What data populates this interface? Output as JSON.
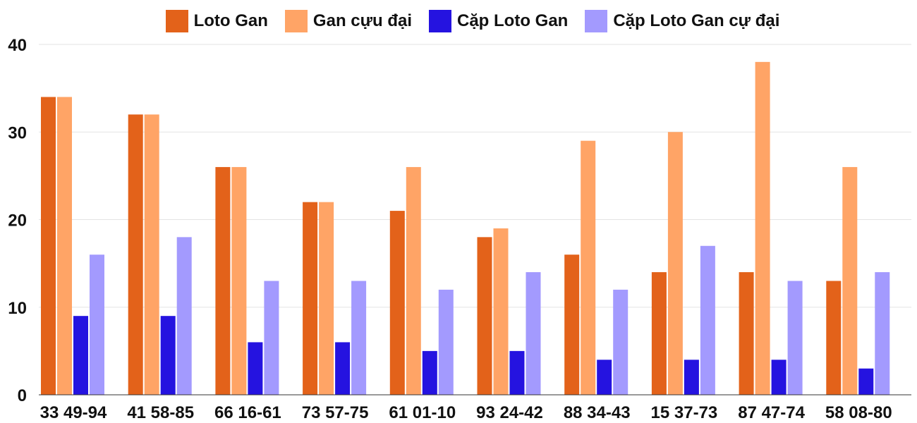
{
  "chart_data": {
    "type": "bar",
    "title": "",
    "xlabel": "",
    "ylabel": "",
    "ylim": [
      0,
      40
    ],
    "yticks": [
      0,
      10,
      20,
      30,
      40
    ],
    "grid": true,
    "legend_position": "top",
    "categories": [
      "33 49-94",
      "41 58-85",
      "66 16-61",
      "73 57-75",
      "61 01-10",
      "93 24-42",
      "88 34-43",
      "15 37-73",
      "87 47-74",
      "58 08-80"
    ],
    "series": [
      {
        "name": "Loto Gan",
        "color": "#E3621A",
        "values": [
          34,
          32,
          26,
          22,
          21,
          18,
          16,
          14,
          14,
          13
        ]
      },
      {
        "name": "Gan cựu đại",
        "color": "#FFA466",
        "values": [
          34,
          32,
          26,
          22,
          26,
          19,
          29,
          30,
          38,
          26
        ]
      },
      {
        "name": "Cặp Loto Gan",
        "color": "#2513E0",
        "values": [
          9,
          9,
          6,
          6,
          5,
          5,
          4,
          4,
          4,
          3
        ]
      },
      {
        "name": "Cặp Loto Gan cự đại",
        "color": "#A39AFE",
        "values": [
          16,
          18,
          13,
          13,
          12,
          14,
          12,
          17,
          13,
          14
        ]
      }
    ]
  }
}
